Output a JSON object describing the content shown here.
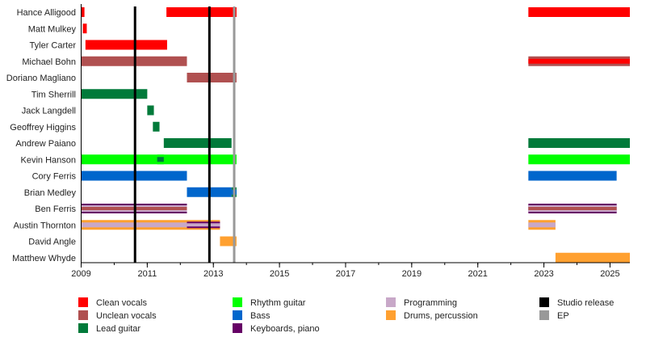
{
  "chart_data": {
    "type": "timeline",
    "xlim": [
      2009,
      2025.6
    ],
    "x_ticks": [
      "2009",
      "2011",
      "2013",
      "2015",
      "2017",
      "2019",
      "2021",
      "2023",
      "2025"
    ],
    "grid": false,
    "legend_position": "bottom",
    "roles": [
      {
        "name": "Clean vocals",
        "color": "#ff0000"
      },
      {
        "name": "Unclean vocals",
        "color": "#b05050"
      },
      {
        "name": "Lead guitar",
        "color": "#007a3a"
      },
      {
        "name": "Rhythm guitar",
        "color": "#00ff00"
      },
      {
        "name": "Bass",
        "color": "#0066cc"
      },
      {
        "name": "Keyboards, piano",
        "color": "#660066"
      },
      {
        "name": "Programming",
        "color": "#c8a8c8"
      },
      {
        "name": "Drums, percussion",
        "color": "#ffa030"
      }
    ],
    "releases": [
      {
        "type": "Studio release",
        "color": "#000000",
        "dates": [
          2010.63,
          2012.88
        ]
      },
      {
        "type": "EP",
        "color": "#999999",
        "dates": [
          2013.63
        ]
      }
    ],
    "members": [
      {
        "name": "Hance Alligood",
        "segments": [
          {
            "roles": [
              "Clean vocals"
            ],
            "start": 2009.0,
            "end": 2009.1
          },
          {
            "roles": [
              "Clean vocals"
            ],
            "start": 2011.58,
            "end": 2013.7
          },
          {
            "roles": [
              "Clean vocals"
            ],
            "start": 2022.53,
            "end": 2025.6
          }
        ]
      },
      {
        "name": "Matt Mulkey",
        "segments": [
          {
            "roles": [
              "Clean vocals"
            ],
            "start": 2009.05,
            "end": 2009.17
          }
        ]
      },
      {
        "name": "Tyler Carter",
        "segments": [
          {
            "roles": [
              "Clean vocals"
            ],
            "start": 2009.13,
            "end": 2011.6
          }
        ]
      },
      {
        "name": "Michael Bohn",
        "segments": [
          {
            "roles": [
              "Unclean vocals"
            ],
            "start": 2009.0,
            "end": 2012.2
          },
          {
            "roles": [
              "Unclean vocals",
              "Clean vocals"
            ],
            "start": 2022.53,
            "end": 2025.6
          }
        ]
      },
      {
        "name": "Doriano Magliano",
        "segments": [
          {
            "roles": [
              "Unclean vocals"
            ],
            "start": 2012.2,
            "end": 2013.7
          }
        ]
      },
      {
        "name": "Tim Sherrill",
        "segments": [
          {
            "roles": [
              "Lead guitar"
            ],
            "start": 2009.0,
            "end": 2011.0
          }
        ]
      },
      {
        "name": "Jack Langdell",
        "segments": [
          {
            "roles": [
              "Lead guitar"
            ],
            "start": 2011.0,
            "end": 2011.2
          }
        ]
      },
      {
        "name": "Geoffrey Higgins",
        "segments": [
          {
            "roles": [
              "Lead guitar"
            ],
            "start": 2011.17,
            "end": 2011.37
          }
        ]
      },
      {
        "name": "Andrew Paiano",
        "segments": [
          {
            "roles": [
              "Lead guitar"
            ],
            "start": 2011.5,
            "end": 2013.55
          },
          {
            "roles": [
              "Lead guitar"
            ],
            "start": 2022.53,
            "end": 2025.6
          }
        ]
      },
      {
        "name": "Kevin Hanson",
        "segments": [
          {
            "roles": [
              "Rhythm guitar"
            ],
            "start": 2009.0,
            "end": 2013.7
          },
          {
            "roles": [
              "Rhythm guitar",
              "Lead guitar"
            ],
            "start": 2011.3,
            "end": 2011.5
          },
          {
            "roles": [
              "Rhythm guitar"
            ],
            "start": 2022.53,
            "end": 2025.6
          }
        ]
      },
      {
        "name": "Cory Ferris",
        "segments": [
          {
            "roles": [
              "Bass"
            ],
            "start": 2009.0,
            "end": 2012.2
          },
          {
            "roles": [
              "Bass"
            ],
            "start": 2022.53,
            "end": 2025.2
          }
        ]
      },
      {
        "name": "Brian Medley",
        "segments": [
          {
            "roles": [
              "Bass"
            ],
            "start": 2012.2,
            "end": 2013.55
          },
          {
            "roles": [
              "Lead guitar",
              "Bass"
            ],
            "start": 2013.55,
            "end": 2013.7
          }
        ]
      },
      {
        "name": "Ben Ferris",
        "segments": [
          {
            "roles": [
              "Keyboards, piano",
              "Programming",
              "Unclean vocals"
            ],
            "start": 2009.0,
            "end": 2012.2
          },
          {
            "roles": [
              "Keyboards, piano",
              "Programming",
              "Unclean vocals"
            ],
            "start": 2022.53,
            "end": 2025.2
          }
        ]
      },
      {
        "name": "Austin Thornton",
        "segments": [
          {
            "roles": [
              "Drums, percussion",
              "Programming"
            ],
            "start": 2009.0,
            "end": 2012.2
          },
          {
            "roles": [
              "Drums, percussion",
              "Keyboards, piano",
              "Programming"
            ],
            "start": 2012.2,
            "end": 2013.2
          },
          {
            "roles": [
              "Drums, percussion",
              "Programming"
            ],
            "start": 2022.53,
            "end": 2023.35
          }
        ]
      },
      {
        "name": "David Angle",
        "segments": [
          {
            "roles": [
              "Drums, percussion"
            ],
            "start": 2013.2,
            "end": 2013.7
          }
        ]
      },
      {
        "name": "Matthew Whyde",
        "segments": [
          {
            "roles": [
              "Drums, percussion"
            ],
            "start": 2023.35,
            "end": 2025.6
          }
        ]
      }
    ]
  }
}
